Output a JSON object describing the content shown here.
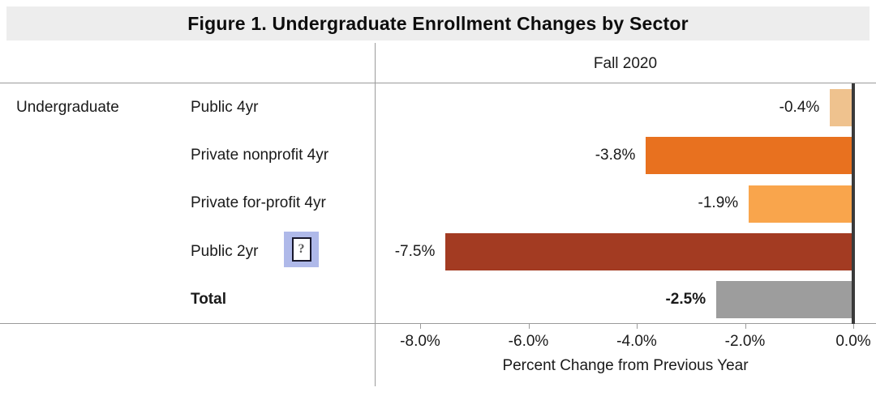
{
  "figure": {
    "title": "Figure 1. Undergraduate Enrollment Changes by Sector"
  },
  "chart_data": {
    "type": "bar",
    "orientation": "horizontal",
    "title": "Figure 1. Undergraduate Enrollment Changes by Sector",
    "column_header": "Fall 2020",
    "group_label": "Undergraduate",
    "categories": [
      "Public 4yr",
      "Private nonprofit 4yr",
      "Private for-profit 4yr",
      "Public 2yr",
      "Total"
    ],
    "values": [
      -0.4,
      -3.8,
      -1.9,
      -7.5,
      -2.5
    ],
    "value_labels": [
      "-0.4%",
      "-3.8%",
      "-1.9%",
      "-7.5%",
      "-2.5%"
    ],
    "bar_colors": [
      "#EFC28E",
      "#E8711F",
      "#F9A54C",
      "#A33B22",
      "#9D9D9D"
    ],
    "bold_rows": [
      false,
      false,
      false,
      false,
      true
    ],
    "help_icon_rows": [
      3
    ],
    "xlabel": "Percent Change from Previous Year",
    "xticks": [
      -8,
      -6,
      -4,
      -2,
      0
    ],
    "xtick_labels": [
      "-8.0%",
      "-6.0%",
      "-4.0%",
      "-2.0%",
      "0.0%"
    ],
    "xlim": [
      -8.8,
      0
    ],
    "grid": false,
    "legend": null,
    "value_label_position": "left-of-bar"
  },
  "icons": {
    "help_icon_glyph": "?"
  },
  "colors": {
    "title_band_bg": "#EDEDED",
    "rule_gray": "#9B9B9B",
    "zero_axis": "#3A3A3A",
    "help_icon_bg": "#AFB9E9",
    "help_box_border": "#17172B"
  }
}
